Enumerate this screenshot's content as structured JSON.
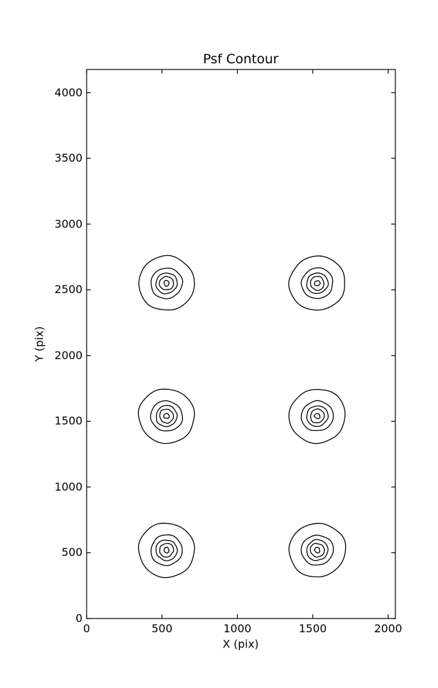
{
  "figure": {
    "background": "#ffffff",
    "foreground": "#000000"
  },
  "chart_data": {
    "type": "contour",
    "title": "Psf Contour",
    "xlabel": "X (pix)",
    "ylabel": "Y (pix)",
    "xlim": [
      0,
      2048
    ],
    "ylim": [
      0,
      4176
    ],
    "xticks": [
      0,
      500,
      1000,
      1500,
      2000
    ],
    "yticks": [
      0,
      500,
      1000,
      1500,
      2000,
      2500,
      3000,
      3500,
      4000
    ],
    "grid": false,
    "legend": "none",
    "tick_direction": "in",
    "line_color": "#000000",
    "levels_per_source": 5,
    "ring_radii_x": [
      187,
      105,
      70,
      46,
      18
    ],
    "ring_radii_y": [
      204,
      115,
      79,
      52,
      21
    ],
    "sources": [
      {
        "x": 530,
        "y": 2550
      },
      {
        "x": 1530,
        "y": 2550
      },
      {
        "x": 530,
        "y": 1540
      },
      {
        "x": 1530,
        "y": 1540
      },
      {
        "x": 530,
        "y": 520
      },
      {
        "x": 1530,
        "y": 520
      }
    ]
  }
}
